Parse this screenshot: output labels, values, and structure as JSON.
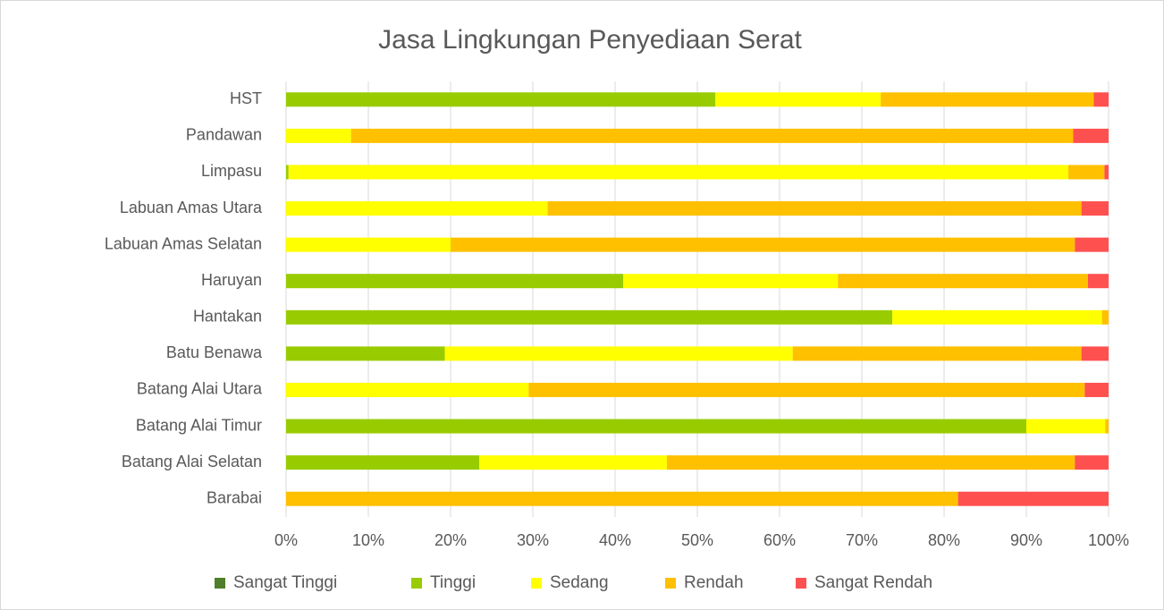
{
  "chart_data": {
    "type": "stacked-bar-horizontal",
    "title": "Jasa Lingkungan Penyediaan Serat",
    "categories": [
      "HST",
      "Pandawan",
      "Limpasu",
      "Labuan Amas Utara",
      "Labuan Amas Selatan",
      "Haruyan",
      "Hantakan",
      "Batu Benawa",
      "Batang Alai Utara",
      "Batang Alai Timur",
      "Batang Alai Selatan",
      "Barabai"
    ],
    "series": [
      {
        "name": "Sangat Tinggi",
        "color": "#4f7f2a",
        "values": [
          0,
          0,
          0,
          0,
          0,
          0,
          0,
          0,
          0,
          0,
          0,
          0
        ]
      },
      {
        "name": "Tinggi",
        "color": "#99cc00",
        "values": [
          52.2,
          0,
          0.3,
          0,
          0,
          41.0,
          73.7,
          19.3,
          0,
          90.0,
          23.5,
          0
        ]
      },
      {
        "name": "Sedang",
        "color": "#ffff00",
        "values": [
          20.1,
          7.9,
          94.8,
          31.8,
          20.0,
          26.1,
          25.5,
          42.3,
          29.5,
          9.6,
          22.8,
          0
        ]
      },
      {
        "name": "Rendah",
        "color": "#ffc000",
        "values": [
          25.9,
          87.8,
          4.4,
          64.9,
          75.9,
          30.4,
          0.8,
          35.1,
          67.6,
          0.4,
          49.6,
          81.7
        ]
      },
      {
        "name": "Sangat Rendah",
        "color": "#ff5050",
        "values": [
          1.8,
          4.3,
          0.5,
          3.3,
          4.1,
          2.5,
          0,
          3.3,
          2.9,
          0,
          4.1,
          18.3
        ]
      }
    ],
    "xlim": [
      0,
      100
    ],
    "xticks": [
      {
        "value": 0,
        "label": "0%"
      },
      {
        "value": 10,
        "label": "10%"
      },
      {
        "value": 20,
        "label": "20%"
      },
      {
        "value": 30,
        "label": "30%"
      },
      {
        "value": 40,
        "label": "40%"
      },
      {
        "value": 50,
        "label": "50%"
      },
      {
        "value": 60,
        "label": "60%"
      },
      {
        "value": 70,
        "label": "70%"
      },
      {
        "value": 80,
        "label": "80%"
      },
      {
        "value": 90,
        "label": "90%"
      },
      {
        "value": 100,
        "label": "100%"
      }
    ],
    "grid": true,
    "legend": "bottom"
  }
}
